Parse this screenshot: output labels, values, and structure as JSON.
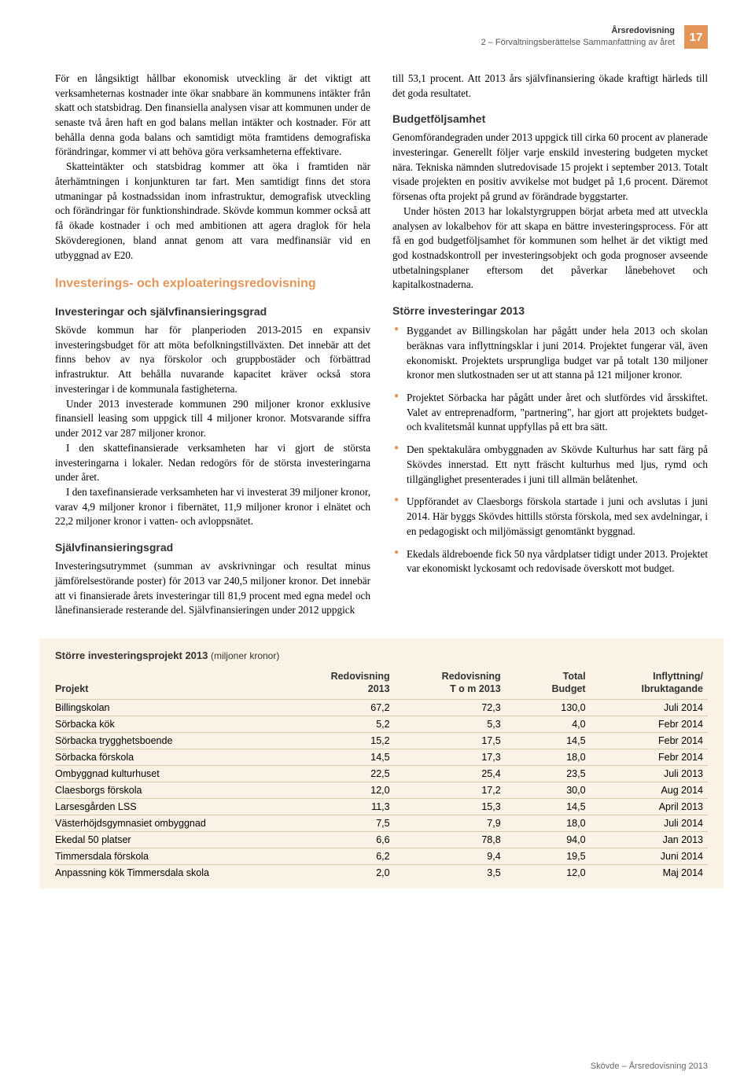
{
  "header": {
    "top_line": "Årsredovisning",
    "sub_line": "2 – Förvaltningsberättelse Sammanfattning av året",
    "page_number": "17"
  },
  "colL": {
    "p1": "För en långsiktigt hållbar ekonomisk utveckling är det viktigt att verksamheternas kostnader inte ökar snabbare än kommunens intäkter från skatt och statsbidrag. Den finansiella analysen visar att kommunen under de senaste två åren haft en god balans mellan intäkter och kostnader. För att behålla denna goda balans och samtidigt möta framtidens demografiska förändringar, kommer vi att behöva göra verksamheterna effektivare.",
    "p2": "Skatteintäkter och statsbidrag kommer att öka i framtiden när återhämtningen i konjunkturen tar fart. Men samtidigt finns det stora utmaningar på kostnadssidan inom infrastruktur, demografisk utveckling och förändringar för funktionshindrade. Skövde kommun kommer också att få ökade kostnader i och med ambitionen att agera draglok för hela Skövderegionen, bland annat genom att vara medfinansiär vid en utbyggnad av E20.",
    "h2a": "Investerings- och exploateringsredovisning",
    "h3a": "Investeringar och självfinansieringsgrad",
    "p3": "Skövde kommun har för planperioden 2013-2015 en expansiv investeringsbudget för att möta befolkningstillväxten. Det innebär att det finns behov av nya förskolor och gruppbostäder och förbättrad infrastruktur. Att behålla nuvarande kapacitet kräver också stora investeringar i de kommunala fastigheterna.",
    "p4": "Under 2013 investerade kommunen 290 miljoner kronor exklusive finansiell leasing som uppgick till 4 miljoner kronor. Motsvarande siffra under 2012 var 287 miljoner kronor.",
    "p5": "I den skattefinansierade verksamheten har vi gjort de största investeringarna i lokaler. Nedan redogörs för de största investeringarna under året.",
    "p6": "I den taxefinansierade verksamheten har vi investerat 39 miljoner kronor, varav 4,9 miljoner kronor i fibernätet, 11,9 miljoner kronor i elnätet och 22,2 miljoner kronor i vatten- och avloppsnätet.",
    "h3b": "Självfinansieringsgrad",
    "p7": "Investeringsutrymmet (summan av avskrivningar och resultat minus jämförelsestörande poster) för 2013 var 240,5 miljoner kronor. Det innebär att vi finansierade årets investeringar till 81,9 procent med egna medel och lånefinansierade resterande del. Självfinansieringen under 2012 uppgick"
  },
  "colR": {
    "p1": "till 53,1 procent. Att 2013 års självfinansiering ökade kraftigt härleds till det goda resultatet.",
    "h3a": "Budgetföljsamhet",
    "p2": "Genomförandegraden under 2013 uppgick till cirka 60 procent av planerade investeringar. Generellt följer varje enskild investering budgeten mycket nära. Tekniska nämnden slutredovisade 15 projekt i september 2013. Totalt visade projekten en positiv avvikelse mot budget på 1,6 procent. Däremot försenas ofta projekt på grund av förändrade byggstarter.",
    "p3": "Under hösten 2013 har lokalstyrgruppen börjat arbeta med att utveckla analysen av lokalbehov för att skapa en bättre investeringsprocess. För att få en god budgetföljsamhet för kommunen som helhet är det viktigt med god kostnadskontroll per investeringsobjekt och goda prognoser avseende utbetalningsplaner eftersom det påverkar lånebehovet och kapitalkostnaderna.",
    "h3b": "Större investeringar 2013",
    "bullets": [
      "Byggandet av Billingskolan har pågått under hela 2013 och skolan beräknas vara inflyttningsklar i juni 2014. Projektet fungerar väl, även ekonomiskt. Projektets ursprungliga budget var på totalt 130 miljoner kronor men slutkostnaden ser ut att stanna på 121 miljoner kronor.",
      "Projektet Sörbacka har pågått under året och slutfördes vid årsskiftet. Valet av entreprenadform, \"partnering\", har gjort att projektets budget- och kvalitetsmål kunnat uppfyllas på ett bra sätt.",
      "Den spektakulära ombyggnaden av Skövde Kulturhus har satt färg på Skövdes innerstad. Ett nytt fräscht kulturhus med ljus, rymd och tillgänglighet presenterades i juni till allmän belåtenhet.",
      "Uppförandet av Claesborgs förskola startade i juni och avslutas i juni 2014. Här byggs Skövdes hittills största förskola, med sex avdelningar, i en pedagogiskt och miljömässigt genomtänkt byggnad.",
      "Ekedals äldreboende fick 50 nya vårdplatser tidigt under 2013. Projektet var ekonomiskt lyckosamt och redovisade överskott mot budget."
    ]
  },
  "table": {
    "title": "Större investeringsprojekt 2013",
    "title_paren": "(miljoner kronor)",
    "columns": [
      "Projekt",
      "Redovisning 2013",
      "Redovisning T o m 2013",
      "Total Budget",
      "Inflyttning/ Ibruktagande"
    ],
    "col_h_top": [
      "",
      "Redovisning",
      "Redovisning",
      "Total",
      "Inflyttning/"
    ],
    "col_h_bot": [
      "Projekt",
      "2013",
      "T o m 2013",
      "Budget",
      "Ibruktagande"
    ],
    "rows": [
      [
        "Billingskolan",
        "67,2",
        "72,3",
        "130,0",
        "Juli 2014"
      ],
      [
        "Sörbacka kök",
        "5,2",
        "5,3",
        "4,0",
        "Febr 2014"
      ],
      [
        "Sörbacka trygghetsboende",
        "15,2",
        "17,5",
        "14,5",
        "Febr 2014"
      ],
      [
        "Sörbacka förskola",
        "14,5",
        "17,3",
        "18,0",
        "Febr 2014"
      ],
      [
        "Ombyggnad kulturhuset",
        "22,5",
        "25,4",
        "23,5",
        "Juli 2013"
      ],
      [
        "Claesborgs förskola",
        "12,0",
        "17,2",
        "30,0",
        "Aug 2014"
      ],
      [
        "Larsesgården LSS",
        "11,3",
        "15,3",
        "14,5",
        "April 2013"
      ],
      [
        "Västerhöjdsgymnasiet ombyggnad",
        "7,5",
        "7,9",
        "18,0",
        "Juli 2014"
      ],
      [
        "Ekedal 50 platser",
        "6,6",
        "78,8",
        "94,0",
        "Jan 2013"
      ],
      [
        "Timmersdala förskola",
        "6,2",
        "9,4",
        "19,5",
        "Juni 2014"
      ],
      [
        "Anpassning kök Timmersdala skola",
        "2,0",
        "3,5",
        "12,0",
        "Maj 2014"
      ]
    ],
    "col_widths": [
      "37%",
      "15%",
      "17%",
      "13%",
      "18%"
    ]
  },
  "footer": "Skövde – Årsredovisning 2013"
}
